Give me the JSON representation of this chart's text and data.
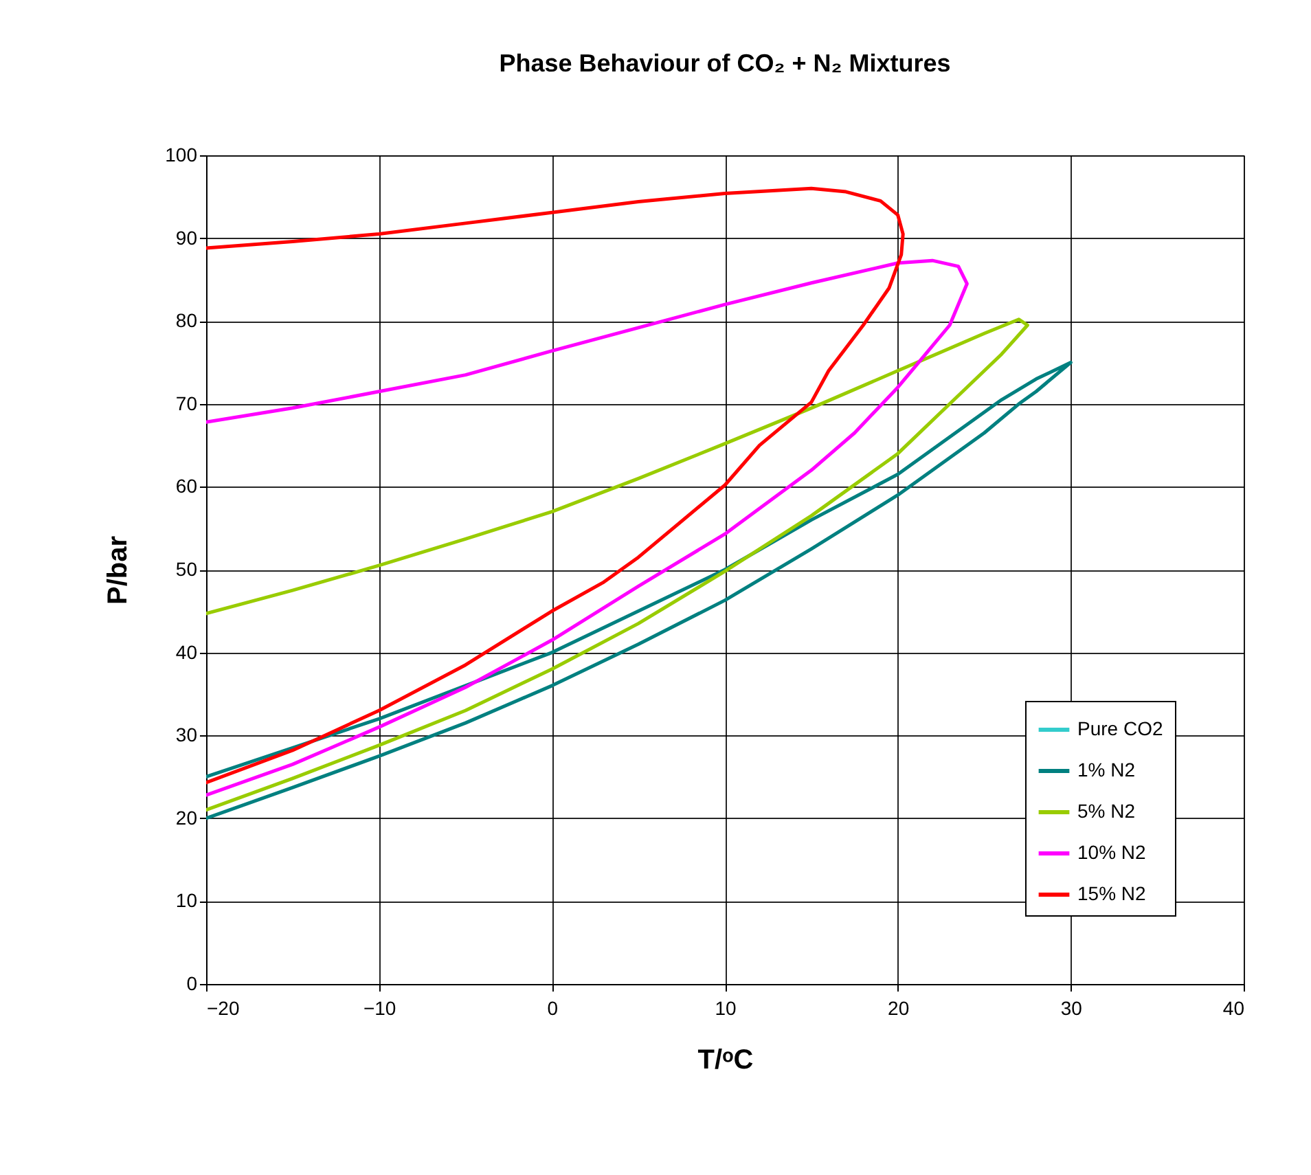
{
  "chart_data": {
    "type": "line",
    "title": "Phase Behaviour of CO₂ + N₂ Mixtures",
    "xlabel": "T/ᵒC",
    "ylabel": "P/bar",
    "xlim": [
      -20,
      40
    ],
    "xticks": [
      -20,
      -10,
      0,
      10,
      20,
      30,
      40
    ],
    "ylim": [
      0,
      100
    ],
    "yticks": [
      0,
      10,
      20,
      30,
      40,
      50,
      60,
      70,
      80,
      90,
      100
    ],
    "grid": true,
    "legend": "bottom right",
    "line_style": "solid",
    "marker": "none",
    "series": [
      {
        "name": "Pure CO2",
        "color": "#33cccc"
      },
      {
        "name": "1% N2",
        "color": "#008080",
        "x": [
          -20,
          -15,
          -10,
          -5,
          0,
          5,
          10,
          15,
          20,
          25,
          27,
          28,
          30,
          28,
          26,
          20,
          15,
          10,
          5,
          0,
          -5,
          -10,
          -15,
          -20
        ],
        "values": [
          20,
          23.7,
          27.5,
          31.5,
          36,
          41,
          46.3,
          52.5,
          59,
          66.5,
          70,
          71.5,
          75,
          73,
          70.5,
          61.5,
          56,
          50,
          45,
          40,
          36,
          32,
          28.5,
          25
        ]
      },
      {
        "name": "5% N2",
        "color": "#99cc00",
        "x": [
          -20,
          -15,
          -10,
          -5,
          0,
          5,
          10,
          15,
          20,
          25,
          27,
          27.5,
          26,
          23,
          20,
          15,
          10,
          5,
          0,
          -5,
          -10,
          -15,
          -20
        ],
        "values": [
          44.7,
          47.5,
          50.5,
          53.7,
          57,
          61,
          65.2,
          69.5,
          74,
          78.5,
          80.2,
          79.5,
          76,
          70,
          64,
          56.5,
          49.8,
          43.5,
          38,
          33,
          28.8,
          24.8,
          21
        ]
      },
      {
        "name": "10% N2",
        "color": "#ff00ff",
        "x": [
          -20,
          -15,
          -10,
          -5,
          0,
          5,
          10,
          15,
          20,
          22,
          23.5,
          24,
          23,
          21,
          20,
          17.5,
          15,
          10,
          5,
          0,
          -5,
          -10,
          -15,
          -20
        ],
        "values": [
          67.8,
          69.5,
          71.5,
          73.5,
          76.4,
          79.2,
          82,
          84.6,
          87,
          87.3,
          86.6,
          84.5,
          79.5,
          74.5,
          72,
          66.5,
          62,
          54.3,
          48,
          41.5,
          35.8,
          31,
          26.5,
          22.8
        ]
      },
      {
        "name": "15% N2",
        "color": "#ff0000",
        "x": [
          -20,
          -15,
          -10,
          -5,
          0,
          5,
          10,
          15,
          17,
          19,
          20,
          20.3,
          20.2,
          19.5,
          18,
          16,
          15,
          12,
          10,
          5,
          3,
          0,
          -5,
          -10,
          -15,
          -20
        ],
        "values": [
          88.8,
          89.6,
          90.5,
          91.8,
          93.1,
          94.4,
          95.4,
          96,
          95.6,
          94.5,
          92.8,
          90.5,
          88,
          84,
          79.5,
          74,
          70.2,
          65,
          60.2,
          51.5,
          48.5,
          45,
          38.5,
          33,
          28.2,
          24.3
        ]
      }
    ]
  }
}
